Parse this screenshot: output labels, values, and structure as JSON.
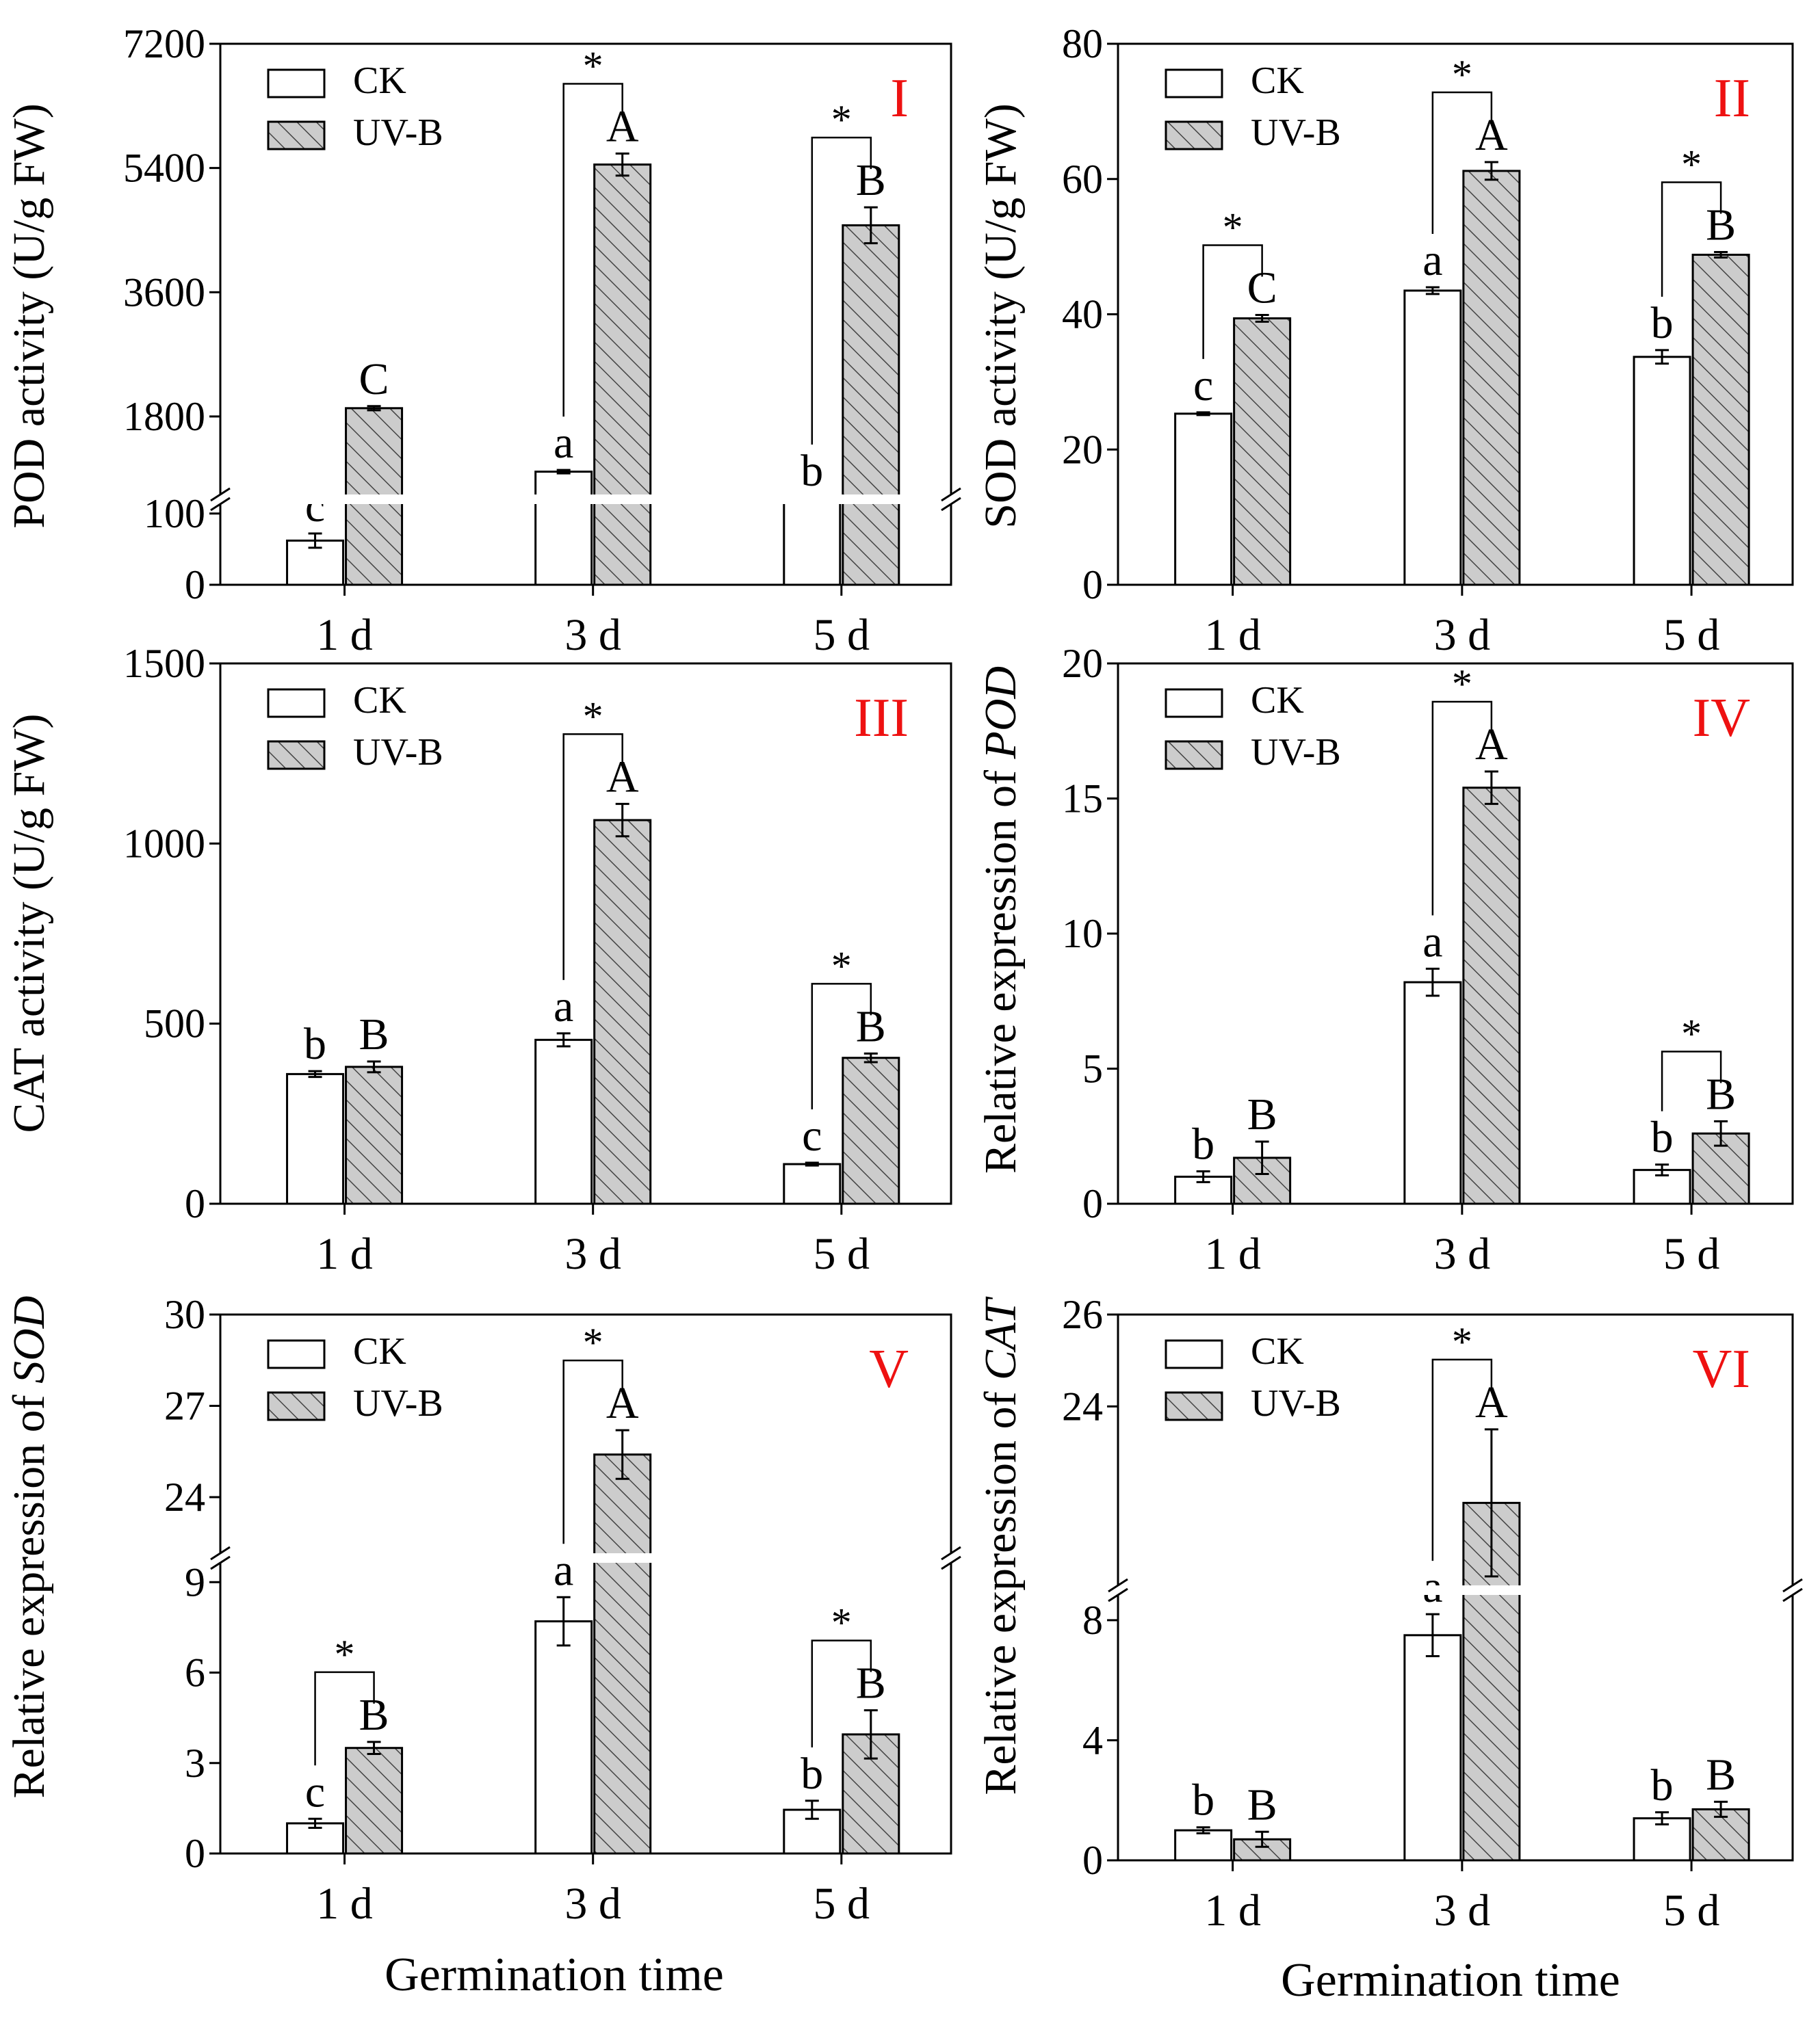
{
  "chart_data": [
    {
      "panel": "I",
      "type": "bar",
      "ylabel": "POD activity (U/g FW)",
      "categories": [
        "1 d",
        "3 d",
        "5 d"
      ],
      "series": [
        {
          "name": "CK",
          "values": [
            62,
            1000,
            600
          ],
          "errors": [
            10,
            25,
            20
          ],
          "letters": [
            "c",
            "a",
            "b"
          ]
        },
        {
          "name": "UV-B",
          "values": [
            1920,
            5450,
            4570
          ],
          "errors": [
            30,
            160,
            260
          ],
          "letters": [
            "C",
            "A",
            "B"
          ]
        }
      ],
      "significant": [
        false,
        true,
        true
      ],
      "axis_break": {
        "lower": [
          0,
          120
        ],
        "upper": [
          600,
          7200
        ]
      },
      "yticks": [
        0,
        100,
        1800,
        3600,
        5400,
        7200
      ],
      "ylim": [
        0,
        7200
      ]
    },
    {
      "panel": "II",
      "type": "bar",
      "ylabel": "SOD activity (U/g FW)",
      "categories": [
        "1 d",
        "3 d",
        "5 d"
      ],
      "series": [
        {
          "name": "CK",
          "values": [
            25.3,
            43.5,
            33.7
          ],
          "errors": [
            0.2,
            0.5,
            1.0
          ],
          "letters": [
            "c",
            "a",
            "b"
          ]
        },
        {
          "name": "UV-B",
          "values": [
            39.4,
            61.2,
            48.8
          ],
          "errors": [
            0.5,
            1.3,
            0.4
          ],
          "letters": [
            "C",
            "A",
            "B"
          ]
        }
      ],
      "significant": [
        true,
        true,
        true
      ],
      "yticks": [
        0,
        20,
        40,
        60,
        80
      ],
      "ylim": [
        0,
        80
      ]
    },
    {
      "panel": "III",
      "type": "bar",
      "ylabel": "CAT activity (U/g FW)",
      "categories": [
        "1 d",
        "3 d",
        "5 d"
      ],
      "series": [
        {
          "name": "CK",
          "values": [
            360,
            455,
            110
          ],
          "errors": [
            8,
            18,
            4
          ],
          "letters": [
            "b",
            "a",
            "c"
          ]
        },
        {
          "name": "UV-B",
          "values": [
            380,
            1065,
            405
          ],
          "errors": [
            15,
            45,
            12
          ],
          "letters": [
            "B",
            "A",
            "B"
          ]
        }
      ],
      "significant": [
        false,
        true,
        true
      ],
      "yticks": [
        0,
        500,
        1000,
        1500
      ],
      "ylim": [
        0,
        1500
      ]
    },
    {
      "panel": "IV",
      "type": "bar",
      "ylabel_prefix": "Relative expression of ",
      "ylabel_gene": "POD",
      "categories": [
        "1 d",
        "3 d",
        "5 d"
      ],
      "series": [
        {
          "name": "CK",
          "values": [
            1.0,
            8.2,
            1.25
          ],
          "errors": [
            0.2,
            0.5,
            0.2
          ],
          "letters": [
            "b",
            "a",
            "b"
          ]
        },
        {
          "name": "UV-B",
          "values": [
            1.7,
            15.4,
            2.6
          ],
          "errors": [
            0.6,
            0.6,
            0.45
          ],
          "letters": [
            "B",
            "A",
            "B"
          ]
        }
      ],
      "significant": [
        false,
        true,
        true
      ],
      "yticks": [
        0,
        5,
        10,
        15,
        20
      ],
      "ylim": [
        0,
        20
      ]
    },
    {
      "panel": "V",
      "type": "bar",
      "ylabel_prefix": "Relative expression of ",
      "ylabel_gene": "SOD",
      "categories": [
        "1 d",
        "3 d",
        "5 d"
      ],
      "series": [
        {
          "name": "CK",
          "values": [
            1.0,
            7.7,
            1.45
          ],
          "errors": [
            0.15,
            0.8,
            0.3
          ],
          "letters": [
            "c",
            "a",
            "b"
          ]
        },
        {
          "name": "UV-B",
          "values": [
            3.5,
            25.4,
            3.95
          ],
          "errors": [
            0.2,
            0.8,
            0.8
          ],
          "letters": [
            "B",
            "A",
            "B"
          ]
        }
      ],
      "significant": [
        true,
        true,
        true
      ],
      "axis_break": {
        "lower": [
          0,
          9.8
        ],
        "upper": [
          22,
          30
        ]
      },
      "yticks": [
        0,
        3,
        6,
        9,
        24,
        27,
        30
      ],
      "ylim": [
        0,
        30
      ]
    },
    {
      "panel": "VI",
      "type": "bar",
      "ylabel_prefix": "Relative expression of ",
      "ylabel_gene": "CAT",
      "categories": [
        "1 d",
        "3 d",
        "5 d"
      ],
      "series": [
        {
          "name": "CK",
          "values": [
            1.0,
            7.5,
            1.4
          ],
          "errors": [
            0.1,
            0.7,
            0.2
          ],
          "letters": [
            "b",
            "a",
            "b"
          ]
        },
        {
          "name": "UV-B",
          "values": [
            0.7,
            21.9,
            1.7
          ],
          "errors": [
            0.25,
            1.6,
            0.25
          ],
          "letters": [
            "B",
            "A",
            "B"
          ]
        }
      ],
      "significant": [
        false,
        true,
        false
      ],
      "axis_break": {
        "lower": [
          0,
          9
        ],
        "upper": [
          20,
          26
        ]
      },
      "yticks": [
        0,
        4,
        8,
        24,
        26
      ],
      "ylim": [
        0,
        26
      ]
    }
  ],
  "legend": {
    "ck": "CK",
    "uvb": "UV-B"
  },
  "xlabel": "Germination time",
  "star": "*",
  "colors": {
    "uvb_fill": "#cccccc",
    "hatch": "#444444",
    "panel_label": "#ee1111"
  }
}
